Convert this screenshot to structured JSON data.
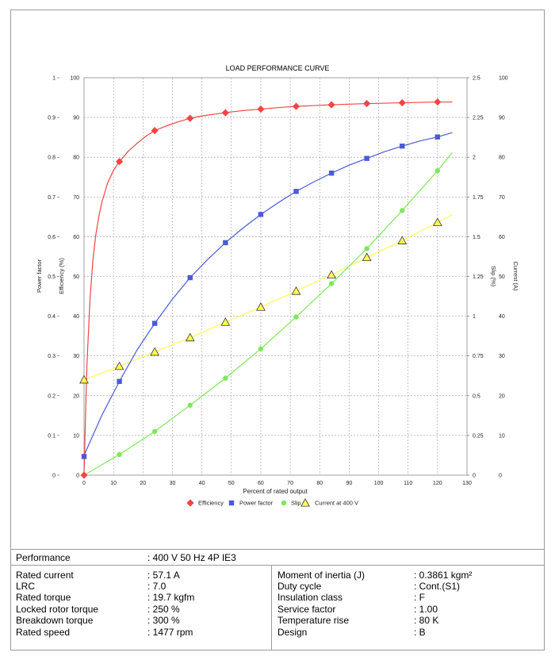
{
  "chart_data": {
    "type": "line",
    "title": "LOAD PERFORMANCE CURVE",
    "xlabel": "Percent of rated output",
    "xlim": [
      0,
      130
    ],
    "x_ticks": [
      "0",
      "10",
      "20",
      "30",
      "40",
      "50",
      "60",
      "70",
      "80",
      "90",
      "100",
      "110",
      "120",
      "130"
    ],
    "axes": {
      "power_factor": {
        "label": "Power factor",
        "lim": [
          0,
          1
        ],
        "ticks": [
          "0",
          "0.1",
          "0.2",
          "0.3",
          "0.4",
          "0.5",
          "0.6",
          "0.7",
          "0.8",
          "0.9",
          "1"
        ]
      },
      "efficiency": {
        "label": "Efficiency (%)",
        "lim": [
          0,
          100
        ],
        "ticks": [
          "0",
          "10",
          "20",
          "30",
          "40",
          "50",
          "60",
          "70",
          "80",
          "90",
          "100"
        ]
      },
      "slip": {
        "label": "Slip (%)",
        "lim": [
          0,
          2.5
        ],
        "ticks": [
          "0",
          "0.25",
          "0.5",
          "0.75",
          "1",
          "1.25",
          "1.5",
          "1.75",
          "2",
          "2.25",
          "2.5"
        ]
      },
      "current": {
        "label": "Current (A)",
        "lim": [
          0,
          100
        ],
        "ticks": [
          "0",
          "10",
          "20",
          "30",
          "40",
          "50",
          "60",
          "70",
          "80",
          "90",
          "100"
        ]
      }
    },
    "grid": true,
    "legend_position": "bottom",
    "series": [
      {
        "name": "Efficiency",
        "axis": "efficiency",
        "color": "#f04545",
        "marker": "diamond",
        "x": [
          0,
          12,
          24,
          36,
          48,
          60,
          72,
          84,
          96,
          108,
          120
        ],
        "y": [
          0,
          78.9,
          86.7,
          89.8,
          91.2,
          92.1,
          92.8,
          93.2,
          93.5,
          93.7,
          93.9
        ],
        "curve_x": [
          0,
          0.5,
          1,
          2,
          3,
          4,
          5,
          6,
          8,
          10,
          12,
          15,
          18,
          21,
          24,
          28,
          32,
          36,
          40,
          45,
          50,
          55,
          60,
          66,
          72,
          78,
          84,
          90,
          96,
          102,
          108,
          114,
          120,
          125
        ],
        "curve_y": [
          0,
          15,
          28,
          44,
          54,
          60.5,
          65,
          68.5,
          73.5,
          76.7,
          78.9,
          81.5,
          83.5,
          85.3,
          86.7,
          87.9,
          88.9,
          89.8,
          90.4,
          90.9,
          91.4,
          91.8,
          92.1,
          92.5,
          92.8,
          93,
          93.2,
          93.35,
          93.5,
          93.6,
          93.7,
          93.8,
          93.9,
          93.9
        ]
      },
      {
        "name": "Power factor",
        "axis": "power_factor",
        "color": "#4a5ad8",
        "marker": "square",
        "x": [
          0,
          12,
          24,
          36,
          48,
          60,
          72,
          84,
          96,
          108,
          120
        ],
        "y": [
          0.047,
          0.236,
          0.382,
          0.497,
          0.585,
          0.656,
          0.714,
          0.76,
          0.797,
          0.828,
          0.851
        ],
        "curve_x": [
          0,
          6,
          12,
          18,
          24,
          30,
          36,
          42,
          48,
          54,
          60,
          66,
          72,
          78,
          84,
          90,
          96,
          102,
          108,
          114,
          120,
          125
        ],
        "curve_y": [
          0.05,
          0.15,
          0.236,
          0.315,
          0.382,
          0.443,
          0.497,
          0.543,
          0.585,
          0.622,
          0.656,
          0.686,
          0.714,
          0.738,
          0.76,
          0.78,
          0.797,
          0.814,
          0.828,
          0.841,
          0.851,
          0.862
        ]
      },
      {
        "name": "Slip",
        "axis": "slip",
        "color": "#7de85a",
        "marker": "circle",
        "x": [
          0,
          12,
          24,
          36,
          48,
          60,
          72,
          84,
          96,
          108,
          120
        ],
        "y": [
          0,
          0.13,
          0.275,
          0.44,
          0.61,
          0.795,
          0.995,
          1.205,
          1.425,
          1.665,
          1.915
        ],
        "curve_x": [
          0,
          12,
          24,
          36,
          48,
          60,
          72,
          84,
          96,
          108,
          120,
          125
        ],
        "curve_y": [
          0,
          0.13,
          0.275,
          0.44,
          0.61,
          0.795,
          0.995,
          1.205,
          1.425,
          1.665,
          1.915,
          2.03
        ]
      },
      {
        "name": "Current at 400 V",
        "axis": "current",
        "color": "#ffff55",
        "marker": "triangle",
        "x": [
          0,
          12,
          24,
          36,
          48,
          60,
          72,
          84,
          96,
          108,
          120
        ],
        "y": [
          24,
          27.4,
          31,
          34.6,
          38.5,
          42.3,
          46.3,
          50.4,
          54.8,
          59,
          63.6
        ],
        "curve_x": [
          0,
          12,
          24,
          36,
          48,
          60,
          72,
          84,
          96,
          108,
          120,
          125
        ],
        "curve_y": [
          24,
          27.4,
          31,
          34.6,
          38.5,
          42.3,
          46.3,
          50.4,
          54.8,
          59,
          63.6,
          65.5
        ]
      }
    ]
  },
  "table": {
    "performance": {
      "label": "Performance",
      "value": ": 400 V 50 Hz 4P IE3"
    },
    "left": [
      {
        "label": "Rated current",
        "value": ": 57.1 A"
      },
      {
        "label": "LRC",
        "value": ": 7.0"
      },
      {
        "label": "Rated torque",
        "value": ": 19.7 kgfm"
      },
      {
        "label": "Locked rotor torque",
        "value": ": 250 %"
      },
      {
        "label": "Breakdown torque",
        "value": ": 300 %"
      },
      {
        "label": "Rated speed",
        "value": ": 1477 rpm"
      }
    ],
    "right": [
      {
        "label": "Moment of inertia (J)",
        "value": ": 0.3861 kgm²"
      },
      {
        "label": "Duty cycle",
        "value": ": Cont.(S1)"
      },
      {
        "label": "Insulation class",
        "value": ": F"
      },
      {
        "label": "Service factor",
        "value": ": 1.00"
      },
      {
        "label": "Temperature rise",
        "value": ": 80 K"
      },
      {
        "label": "Design",
        "value": ": B"
      }
    ]
  }
}
